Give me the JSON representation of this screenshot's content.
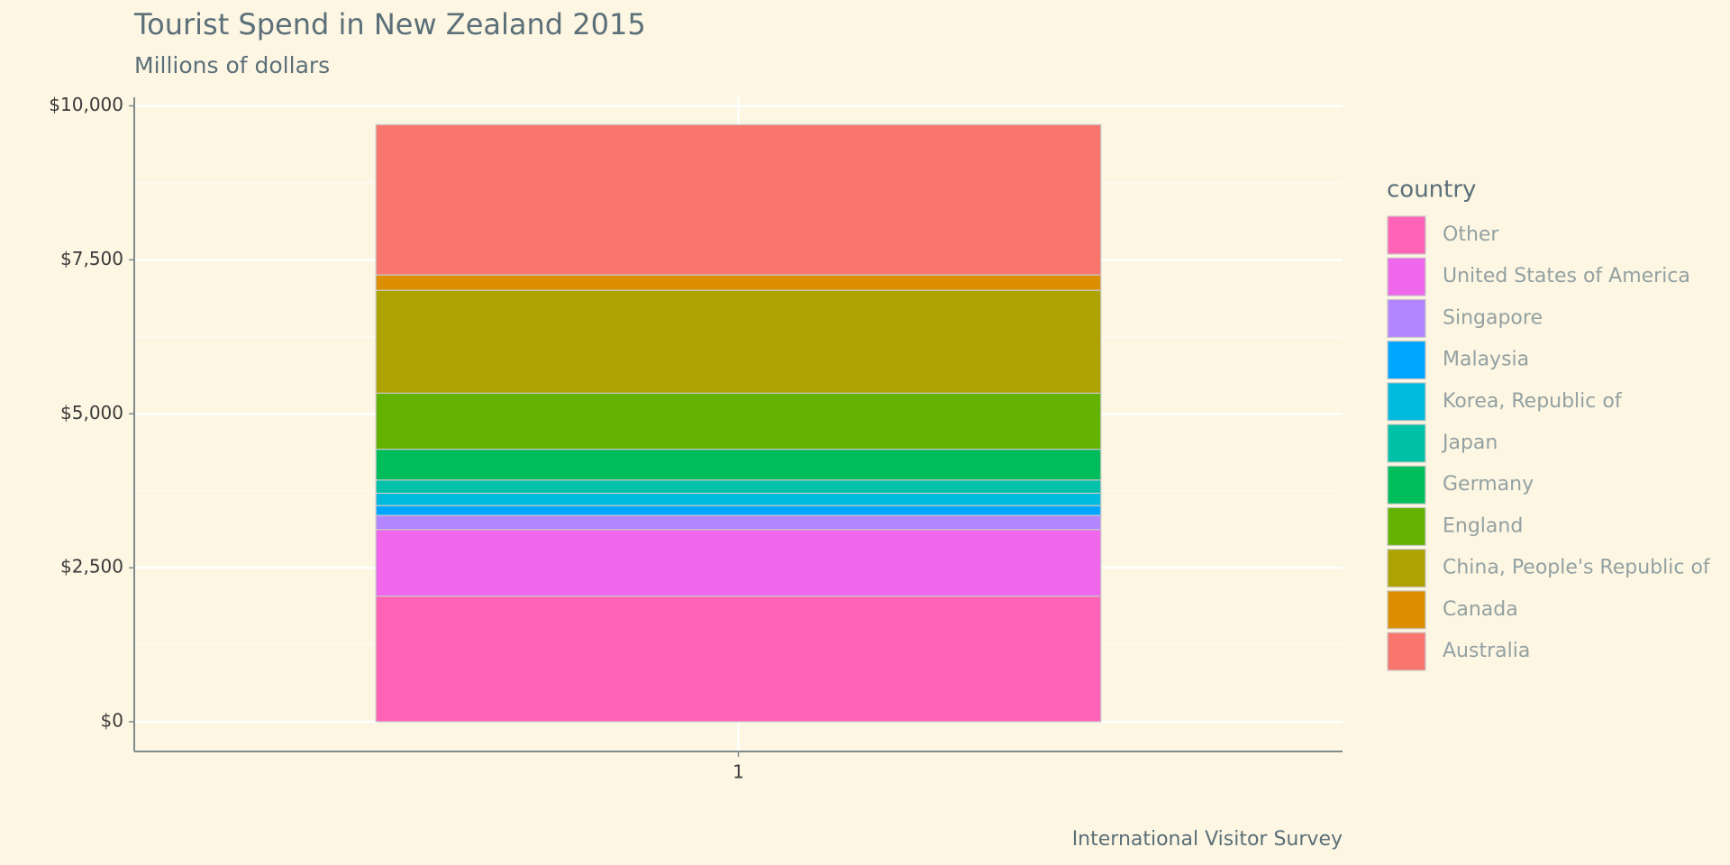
{
  "chart_data": {
    "type": "stacked-bar",
    "title": "Tourist Spend in New Zealand 2015",
    "subtitle": "Millions of dollars",
    "caption": "International Visitor Survey",
    "legend_title": "country",
    "legend_position": "right",
    "categories": [
      "1"
    ],
    "series": [
      {
        "name": "Other",
        "color": "#FF63B6",
        "values": [
          2040
        ]
      },
      {
        "name": "United States of America",
        "color": "#EF67EB",
        "values": [
          1080
        ]
      },
      {
        "name": "Singapore",
        "color": "#B385FF",
        "values": [
          230
        ]
      },
      {
        "name": "Malaysia",
        "color": "#00A6FF",
        "values": [
          160
        ]
      },
      {
        "name": "Korea, Republic of",
        "color": "#00BADE",
        "values": [
          200
        ]
      },
      {
        "name": "Japan",
        "color": "#00C1A7",
        "values": [
          215
        ]
      },
      {
        "name": "Germany",
        "color": "#00BD5C",
        "values": [
          500
        ]
      },
      {
        "name": "England",
        "color": "#64B200",
        "values": [
          910
        ]
      },
      {
        "name": "China, People's Republic of",
        "color": "#AEA200",
        "values": [
          1670
        ]
      },
      {
        "name": "Canada",
        "color": "#DB8E00",
        "values": [
          250
        ]
      },
      {
        "name": "Australia",
        "color": "#F8766D",
        "values": [
          2440
        ]
      }
    ],
    "ylim": [
      0,
      10000
    ],
    "yticks": [
      {
        "value": 0,
        "label": "$0"
      },
      {
        "value": 2500,
        "label": "$2,500"
      },
      {
        "value": 5000,
        "label": "$5,000"
      },
      {
        "value": 7500,
        "label": "$7,500"
      },
      {
        "value": 10000,
        "label": "$10,000"
      }
    ],
    "grid": true
  }
}
